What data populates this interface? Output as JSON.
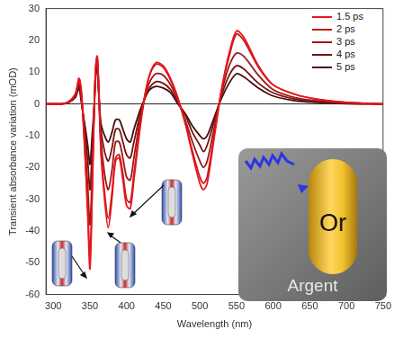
{
  "chart_data": {
    "type": "line",
    "x_label": "Wavelength (nm)",
    "y_label": "Transient absorbance variation (mOD)",
    "x": [
      290,
      310,
      320,
      330,
      335,
      338,
      342,
      347,
      350,
      353,
      356,
      358,
      360,
      362,
      365,
      370,
      375,
      380,
      385,
      390,
      395,
      400,
      405,
      410,
      420,
      430,
      440,
      450,
      460,
      470,
      480,
      490,
      500,
      505,
      510,
      520,
      530,
      540,
      550,
      560,
      580,
      600,
      630,
      660,
      700,
      750
    ],
    "series": [
      {
        "name": "1.5 ps",
        "color": "#e8161c",
        "values": [
          0,
          0,
          0.5,
          3,
          8,
          5,
          -10,
          -35,
          -52,
          -30,
          0,
          12,
          15,
          5,
          -15,
          -30,
          -39,
          -30,
          -18,
          -17,
          -24,
          -32,
          -33,
          -24,
          -5,
          8,
          13,
          12,
          8,
          2,
          -6,
          -16,
          -25,
          -27,
          -25,
          -10,
          5,
          16,
          23,
          21,
          12,
          6,
          3,
          1.5,
          0.5,
          0
        ]
      },
      {
        "name": "2 ps",
        "color": "#c81818",
        "values": [
          0,
          0,
          0.5,
          3,
          8,
          4,
          -10,
          -33,
          -48,
          -28,
          0,
          12,
          15,
          5,
          -14,
          -28,
          -36,
          -28,
          -17,
          -16,
          -22,
          -30,
          -31,
          -22,
          -4,
          8,
          12.5,
          11.5,
          7.5,
          1.5,
          -6,
          -15,
          -23,
          -25,
          -23,
          -9,
          5,
          15,
          22,
          20,
          11.5,
          6,
          3,
          1.5,
          0.5,
          0
        ]
      },
      {
        "name": "3 ps",
        "color": "#9e1616",
        "values": [
          0,
          0,
          0.5,
          3,
          7,
          3,
          -8,
          -26,
          -38,
          -22,
          0,
          11,
          14,
          5,
          -11,
          -22,
          -27,
          -21,
          -12,
          -12,
          -17,
          -23,
          -24,
          -17,
          -3,
          6,
          9.5,
          9,
          6,
          1,
          -5,
          -12,
          -18,
          -20,
          -18,
          -7,
          4,
          12,
          16,
          15,
          9,
          4.5,
          2,
          1,
          0.3,
          0
        ]
      },
      {
        "name": "4 ps",
        "color": "#751212",
        "values": [
          0,
          0,
          0.3,
          2.5,
          6,
          2,
          -6,
          -18,
          -27,
          -15,
          0,
          10,
          13,
          4,
          -8,
          -15,
          -18,
          -14,
          -8,
          -8,
          -12,
          -16,
          -17,
          -12,
          -2,
          4.5,
          7,
          6.5,
          4.5,
          0.5,
          -3.5,
          -9,
          -13,
          -15,
          -13,
          -5,
          3,
          9,
          12,
          11,
          6.5,
          3.5,
          1.5,
          0.8,
          0.2,
          0
        ]
      },
      {
        "name": "5 ps",
        "color": "#4a0c0c",
        "values": [
          0,
          0,
          0.3,
          2,
          5,
          1,
          -5,
          -13,
          -19,
          -10,
          0,
          9,
          12,
          3,
          -6,
          -10,
          -12,
          -9,
          -5,
          -5,
          -8,
          -11,
          -12,
          -8,
          -1,
          4,
          5.5,
          5,
          3.5,
          0,
          -3,
          -7,
          -10,
          -11,
          -10,
          -4,
          2,
          6.5,
          9.5,
          8.5,
          5,
          2.5,
          1,
          0.5,
          0.1,
          0
        ]
      }
    ],
    "reference_line": 0,
    "xlim": [
      290,
      750
    ],
    "xticks": [
      300,
      350,
      400,
      450,
      500,
      550,
      600,
      650,
      700,
      750
    ],
    "ylim": [
      -60,
      30
    ],
    "yticks": [
      -60,
      -50,
      -40,
      -30,
      -20,
      -10,
      0,
      10,
      20,
      30
    ],
    "grid": false,
    "legend": "upper right",
    "inset": {
      "core": "Or",
      "shell": "Argent"
    }
  }
}
